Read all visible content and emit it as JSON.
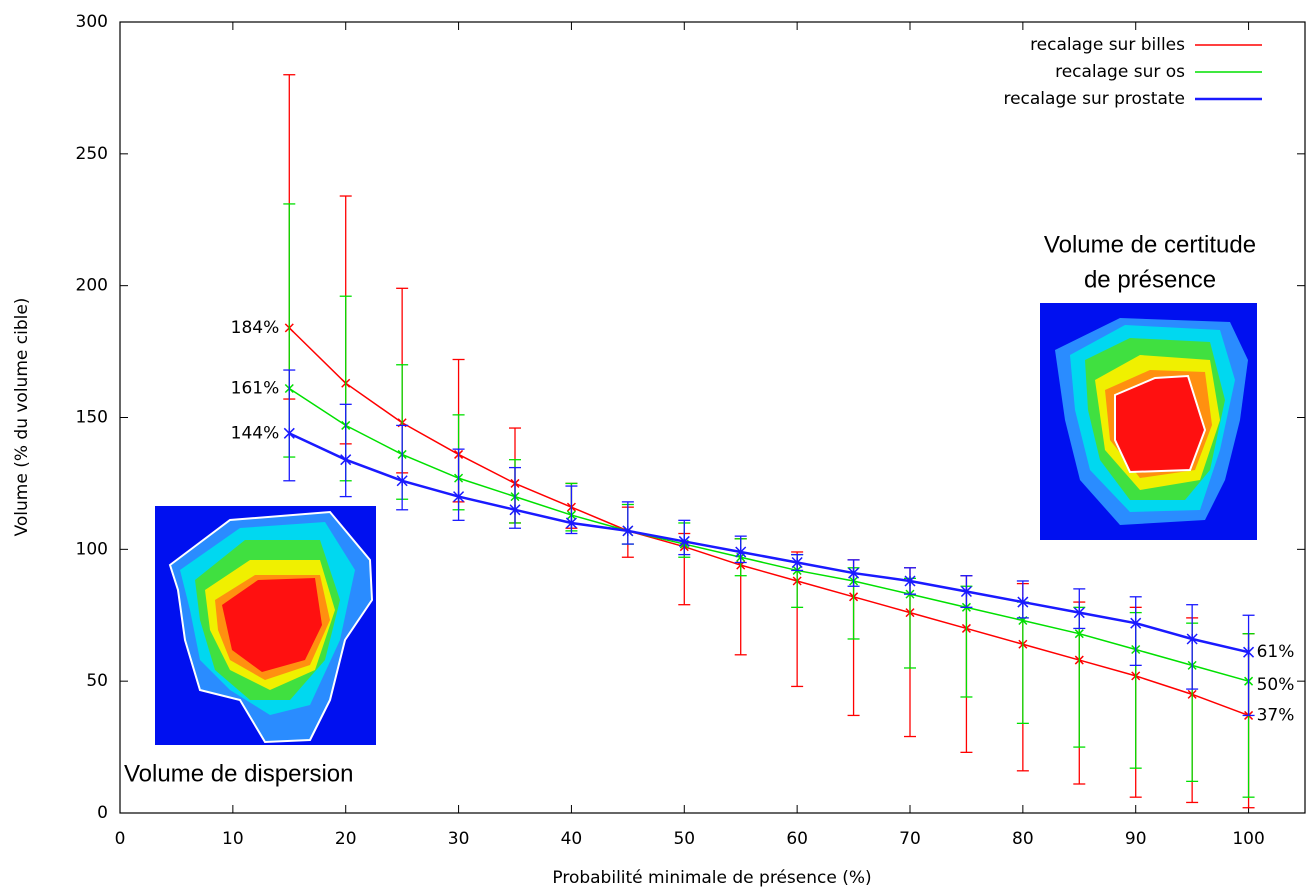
{
  "chart_data": {
    "type": "line",
    "xlabel": "Probabilité minimale de présence (%)",
    "ylabel": "Volume (% du volume cible)",
    "x": [
      15,
      20,
      25,
      30,
      35,
      40,
      45,
      50,
      55,
      60,
      65,
      70,
      75,
      80,
      85,
      90,
      95,
      100
    ],
    "xlim": [
      0,
      105
    ],
    "xticks": [
      0,
      10,
      20,
      30,
      40,
      50,
      60,
      70,
      80,
      90,
      100
    ],
    "ylim": [
      0,
      300
    ],
    "yticks": [
      0,
      50,
      100,
      150,
      200,
      250,
      300
    ],
    "grid": false,
    "legend": "top-right",
    "series": [
      {
        "name": "recalage sur billes",
        "color": "#ff0000",
        "values": [
          184,
          163,
          148,
          136,
          125,
          116,
          107,
          101,
          94,
          88,
          82,
          76,
          70,
          64,
          58,
          52,
          45,
          37
        ],
        "error_upper": [
          280,
          234,
          199,
          172,
          146,
          125,
          116,
          106,
          104,
          99,
          96,
          93,
          90,
          87,
          80,
          78,
          74,
          68
        ],
        "error_lower": [
          157,
          140,
          129,
          118,
          110,
          108,
          97,
          79,
          60,
          48,
          37,
          29,
          23,
          16,
          11,
          6,
          4,
          2
        ],
        "value_labels": [
          "184%",
          null,
          null,
          null,
          null,
          null,
          null,
          null,
          null,
          null,
          null,
          null,
          null,
          null,
          null,
          null,
          null,
          "37%"
        ]
      },
      {
        "name": "recalage sur os",
        "color": "#00e000",
        "values": [
          161,
          147,
          136,
          127,
          120,
          113,
          107,
          102,
          97,
          92,
          88,
          83,
          78,
          73,
          68,
          62,
          56,
          50
        ],
        "error_upper": [
          231,
          196,
          170,
          151,
          134,
          125,
          117,
          110,
          104,
          98,
          93,
          89,
          86,
          80,
          78,
          76,
          72,
          68
        ],
        "error_lower": [
          135,
          126,
          119,
          115,
          110,
          107,
          102,
          97,
          90,
          78,
          66,
          55,
          44,
          34,
          25,
          17,
          12,
          6
        ],
        "value_labels": [
          "161%",
          null,
          null,
          null,
          null,
          null,
          null,
          null,
          null,
          null,
          null,
          null,
          null,
          null,
          null,
          null,
          null,
          "50%"
        ]
      },
      {
        "name": "recalage sur prostate",
        "color": "#1a1aff",
        "values": [
          144,
          134,
          126,
          120,
          115,
          110,
          107,
          103,
          99,
          95,
          91,
          88,
          84,
          80,
          76,
          72,
          66,
          61
        ],
        "error_upper": [
          168,
          155,
          147,
          138,
          131,
          124,
          118,
          111,
          105,
          98,
          96,
          93,
          90,
          88,
          85,
          82,
          79,
          75
        ],
        "error_lower": [
          126,
          120,
          115,
          111,
          108,
          106,
          102,
          98,
          95,
          92,
          86,
          83,
          78,
          74,
          70,
          56,
          47,
          37
        ],
        "value_labels": [
          "144%",
          null,
          null,
          null,
          null,
          null,
          null,
          null,
          null,
          null,
          null,
          null,
          null,
          null,
          null,
          null,
          null,
          "61%"
        ]
      }
    ],
    "insets": [
      {
        "title": [
          "Volume de dispersion"
        ]
      },
      {
        "title": [
          "Volume de certitude",
          "de présence"
        ]
      }
    ]
  }
}
